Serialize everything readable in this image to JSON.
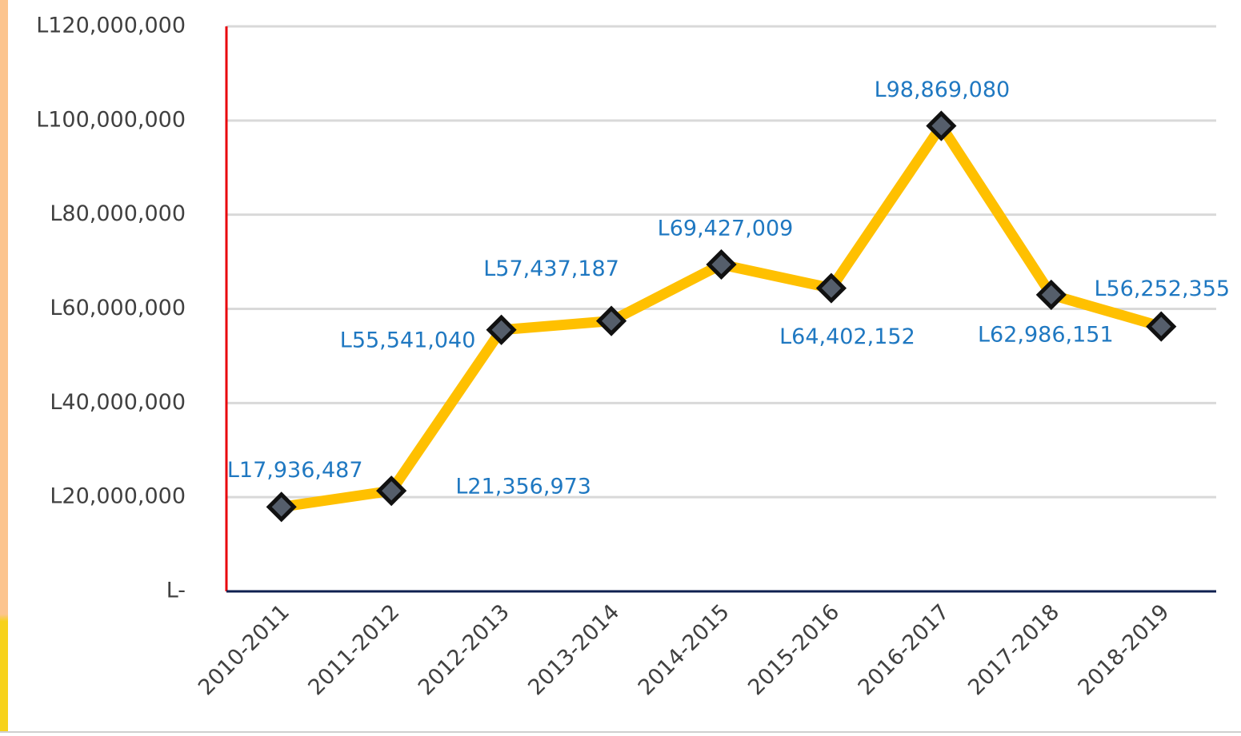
{
  "chart_data": {
    "type": "line",
    "categories": [
      "2010-2011",
      "2011-2012",
      "2012-2013",
      "2013-2014",
      "2014-2015",
      "2015-2016",
      "2016-2017",
      "2017-2018",
      "2018-2019"
    ],
    "series": [
      {
        "color": "#ffc000",
        "values": [
          17936487,
          21356973,
          55541040,
          57437187,
          69427009,
          64402152,
          98869080,
          62986151,
          56252355
        ],
        "value_labels": [
          "L17,936,487",
          "L21,356,973",
          "L55,541,040",
          "L57,437,187",
          "L69,427,009",
          "L64,402,152",
          "L98,869,080",
          "L62,986,151",
          "L56,252,355"
        ]
      }
    ],
    "ylim": [
      0,
      120000000
    ],
    "yticks": [
      {
        "value": 0,
        "label": "L-"
      },
      {
        "value": 20000000,
        "label": "L20,000,000"
      },
      {
        "value": 40000000,
        "label": "L40,000,000"
      },
      {
        "value": 60000000,
        "label": "L60,000,000"
      },
      {
        "value": 80000000,
        "label": "L80,000,000"
      },
      {
        "value": 100000000,
        "label": "L100,000,000"
      },
      {
        "value": 120000000,
        "label": "L120,000,000"
      }
    ],
    "grid": true
  }
}
